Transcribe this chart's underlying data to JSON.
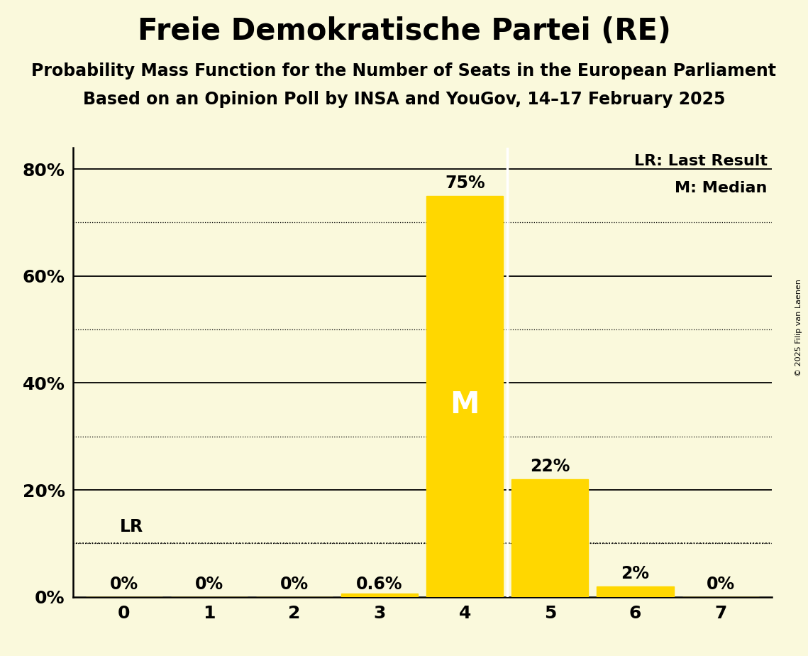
{
  "title": "Freie Demokratische Partei (RE)",
  "subtitle1": "Probability Mass Function for the Number of Seats in the European Parliament",
  "subtitle2": "Based on an Opinion Poll by INSA and YouGov, 14–17 February 2025",
  "copyright": "© 2025 Filip van Laenen",
  "seats": [
    0,
    1,
    2,
    3,
    4,
    5,
    6,
    7
  ],
  "probabilities": [
    0.0,
    0.0,
    0.0,
    0.006,
    0.75,
    0.22,
    0.02,
    0.0
  ],
  "bar_labels": [
    "0%",
    "0%",
    "0%",
    "0.6%",
    "75%",
    "22%",
    "2%",
    "0%"
  ],
  "bar_color": "#FFD700",
  "median_seat": 4,
  "median_label": "M",
  "lr_value": 0.1,
  "lr_label": "LR",
  "legend_lr": "LR: Last Result",
  "legend_m": "M: Median",
  "background_color": "#FAF9DC",
  "ylim_max": 0.84,
  "yticks": [
    0.0,
    0.2,
    0.4,
    0.6,
    0.8
  ],
  "ytick_labels": [
    "0%",
    "20%",
    "40%",
    "60%",
    "80%"
  ],
  "minor_gridlines": [
    0.1,
    0.3,
    0.5,
    0.7
  ],
  "title_fontsize": 30,
  "subtitle_fontsize": 17,
  "tick_fontsize": 18,
  "bar_label_fontsize": 17,
  "median_fontsize": 30,
  "legend_fontsize": 16
}
